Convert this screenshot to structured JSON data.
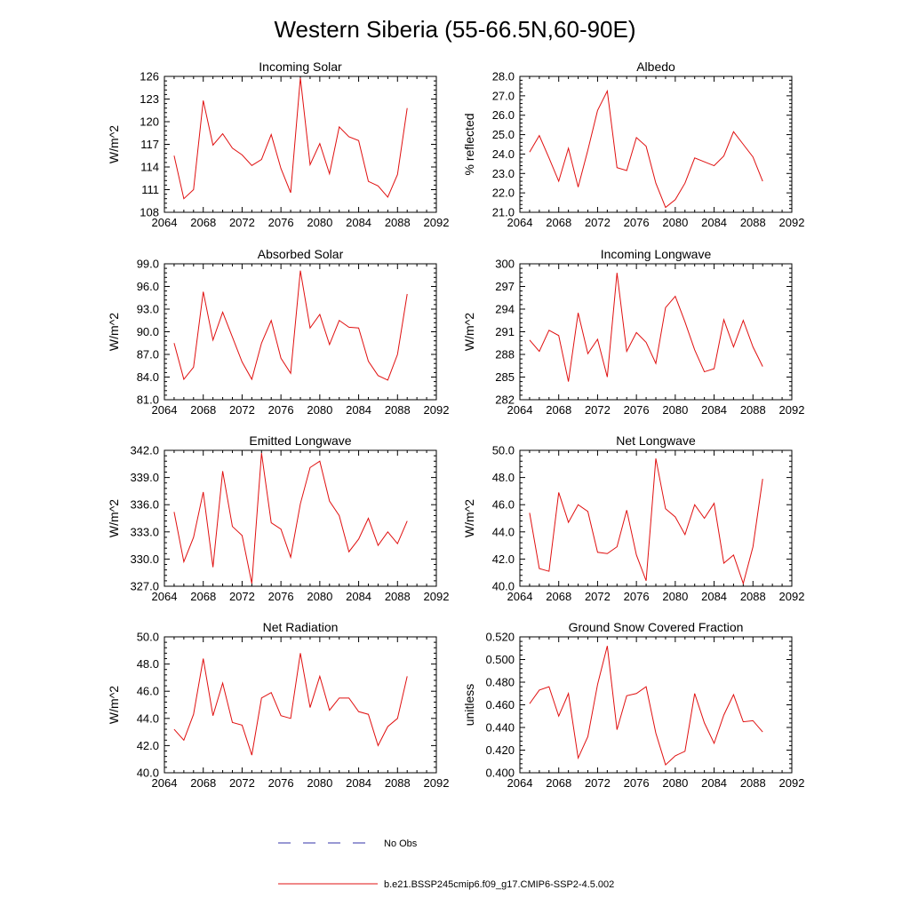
{
  "title": "Western Siberia (55-66.5N,60-90E)",
  "legend": [
    {
      "label": "No Obs",
      "color": "#3333aa",
      "style": "dashed"
    },
    {
      "label": "b.e21.BSSP245cmip6.f09_g17.CMIP6-SSP2-4.5.002",
      "color": "#e01010",
      "style": "solid"
    }
  ],
  "chart_data": [
    {
      "type": "line",
      "title": "Incoming Solar",
      "ylabel": "W/m^2",
      "xlim": [
        2064,
        2092
      ],
      "xticks": [
        2064,
        2068,
        2072,
        2076,
        2080,
        2084,
        2088,
        2092
      ],
      "ylim": [
        108,
        126
      ],
      "yticks": [
        108,
        111,
        114,
        117,
        120,
        123,
        126
      ],
      "ytick_labels": [
        "108",
        "111",
        "114",
        "117",
        "120",
        "123",
        "126"
      ],
      "x": [
        2065,
        2066,
        2067,
        2068,
        2069,
        2070,
        2071,
        2072,
        2073,
        2074,
        2075,
        2076,
        2077,
        2078,
        2079,
        2080,
        2081,
        2082,
        2083,
        2084,
        2085,
        2086,
        2087,
        2088,
        2089
      ],
      "series": [
        {
          "name": "b.e21.BSSP245cmip6.f09_g17.CMIP6-SSP2-4.5.002",
          "color": "#e01010",
          "values": [
            115.5,
            109.8,
            111.0,
            122.8,
            116.9,
            118.4,
            116.5,
            115.6,
            114.2,
            115.0,
            118.3,
            113.8,
            110.6,
            125.8,
            114.3,
            117.1,
            113.1,
            119.3,
            118.0,
            117.5,
            112.1,
            111.5,
            110.0,
            113.0,
            121.8
          ]
        }
      ]
    },
    {
      "type": "line",
      "title": "Albedo",
      "ylabel": "% reflected",
      "xlim": [
        2064,
        2092
      ],
      "xticks": [
        2064,
        2068,
        2072,
        2076,
        2080,
        2084,
        2088,
        2092
      ],
      "ylim": [
        21.0,
        28.0
      ],
      "yticks": [
        21,
        22,
        23,
        24,
        25,
        26,
        27,
        28
      ],
      "ytick_labels": [
        "21.0",
        "22.0",
        "23.0",
        "24.0",
        "25.0",
        "26.0",
        "27.0",
        "28.0"
      ],
      "x": [
        2065,
        2066,
        2067,
        2068,
        2069,
        2070,
        2071,
        2072,
        2073,
        2074,
        2075,
        2076,
        2077,
        2078,
        2079,
        2080,
        2081,
        2082,
        2083,
        2084,
        2085,
        2086,
        2087,
        2088,
        2089
      ],
      "series": [
        {
          "name": "b.e21.BSSP245cmip6.f09_g17.CMIP6-SSP2-4.5.002",
          "color": "#e01010",
          "values": [
            24.1,
            24.95,
            23.8,
            22.6,
            24.3,
            22.3,
            24.2,
            26.25,
            27.25,
            23.3,
            23.15,
            24.85,
            24.4,
            22.5,
            21.25,
            21.65,
            22.5,
            23.8,
            23.6,
            23.4,
            23.9,
            25.15,
            24.5,
            23.85,
            22.6
          ]
        }
      ]
    },
    {
      "type": "line",
      "title": "Absorbed Solar",
      "ylabel": "W/m^2",
      "xlim": [
        2064,
        2092
      ],
      "xticks": [
        2064,
        2068,
        2072,
        2076,
        2080,
        2084,
        2088,
        2092
      ],
      "ylim": [
        81,
        99
      ],
      "yticks": [
        81,
        84,
        87,
        90,
        93,
        96,
        99
      ],
      "ytick_labels": [
        "81.0",
        "84.0",
        "87.0",
        "90.0",
        "93.0",
        "96.0",
        "99.0"
      ],
      "x": [
        2065,
        2066,
        2067,
        2068,
        2069,
        2070,
        2071,
        2072,
        2073,
        2074,
        2075,
        2076,
        2077,
        2078,
        2079,
        2080,
        2081,
        2082,
        2083,
        2084,
        2085,
        2086,
        2087,
        2088,
        2089
      ],
      "series": [
        {
          "name": "b.e21.BSSP245cmip6.f09_g17.CMIP6-SSP2-4.5.002",
          "color": "#e01010",
          "values": [
            88.5,
            83.7,
            85.3,
            95.3,
            88.9,
            92.6,
            89.3,
            86.0,
            83.7,
            88.5,
            91.5,
            86.5,
            84.5,
            98.1,
            90.5,
            92.3,
            88.3,
            91.5,
            90.6,
            90.5,
            86.1,
            84.2,
            83.6,
            87.0,
            95.0
          ]
        }
      ]
    },
    {
      "type": "line",
      "title": "Incoming Longwave",
      "ylabel": "W/m^2",
      "xlim": [
        2064,
        2092
      ],
      "xticks": [
        2064,
        2068,
        2072,
        2076,
        2080,
        2084,
        2088,
        2092
      ],
      "ylim": [
        282,
        300
      ],
      "yticks": [
        282,
        285,
        288,
        291,
        294,
        297,
        300
      ],
      "ytick_labels": [
        "282",
        "285",
        "288",
        "291",
        "294",
        "297",
        "300"
      ],
      "x": [
        2065,
        2066,
        2067,
        2068,
        2069,
        2070,
        2071,
        2072,
        2073,
        2074,
        2075,
        2076,
        2077,
        2078,
        2079,
        2080,
        2081,
        2082,
        2083,
        2084,
        2085,
        2086,
        2087,
        2088,
        2089
      ],
      "series": [
        {
          "name": "b.e21.BSSP245cmip6.f09_g17.CMIP6-SSP2-4.5.002",
          "color": "#e01010",
          "values": [
            289.9,
            288.4,
            291.2,
            290.5,
            284.4,
            293.5,
            288.1,
            290.0,
            285.0,
            298.8,
            288.4,
            290.9,
            289.6,
            286.8,
            294.2,
            295.7,
            292.3,
            288.6,
            285.7,
            286.1,
            292.6,
            289.0,
            292.5,
            289.0,
            286.4
          ]
        }
      ]
    },
    {
      "type": "line",
      "title": "Emitted Longwave",
      "ylabel": "W/m^2",
      "xlim": [
        2064,
        2092
      ],
      "xticks": [
        2064,
        2068,
        2072,
        2076,
        2080,
        2084,
        2088,
        2092
      ],
      "ylim": [
        327,
        342
      ],
      "yticks": [
        327,
        330,
        333,
        336,
        339,
        342
      ],
      "ytick_labels": [
        "327.0",
        "330.0",
        "333.0",
        "336.0",
        "339.0",
        "342.0"
      ],
      "x": [
        2065,
        2066,
        2067,
        2068,
        2069,
        2070,
        2071,
        2072,
        2073,
        2074,
        2075,
        2076,
        2077,
        2078,
        2079,
        2080,
        2081,
        2082,
        2083,
        2084,
        2085,
        2086,
        2087,
        2088,
        2089
      ],
      "series": [
        {
          "name": "b.e21.BSSP245cmip6.f09_g17.CMIP6-SSP2-4.5.002",
          "color": "#e01010",
          "values": [
            335.2,
            329.7,
            332.4,
            337.4,
            329.1,
            339.7,
            333.6,
            332.6,
            327.3,
            341.7,
            334.0,
            333.3,
            330.2,
            336.1,
            340.1,
            340.8,
            336.4,
            334.8,
            330.8,
            332.2,
            334.5,
            331.5,
            333.0,
            331.7,
            334.2
          ]
        }
      ]
    },
    {
      "type": "line",
      "title": "Net Longwave",
      "ylabel": "W/m^2",
      "xlim": [
        2064,
        2092
      ],
      "xticks": [
        2064,
        2068,
        2072,
        2076,
        2080,
        2084,
        2088,
        2092
      ],
      "ylim": [
        40,
        50
      ],
      "yticks": [
        40,
        42,
        44,
        46,
        48,
        50
      ],
      "ytick_labels": [
        "40.0",
        "42.0",
        "44.0",
        "46.0",
        "48.0",
        "50.0"
      ],
      "x": [
        2065,
        2066,
        2067,
        2068,
        2069,
        2070,
        2071,
        2072,
        2073,
        2074,
        2075,
        2076,
        2077,
        2078,
        2079,
        2080,
        2081,
        2082,
        2083,
        2084,
        2085,
        2086,
        2087,
        2088,
        2089
      ],
      "series": [
        {
          "name": "b.e21.BSSP245cmip6.f09_g17.CMIP6-SSP2-4.5.002",
          "color": "#e01010",
          "values": [
            45.4,
            41.3,
            41.1,
            46.9,
            44.7,
            46.0,
            45.5,
            42.5,
            42.4,
            42.9,
            45.6,
            42.3,
            40.4,
            49.4,
            45.7,
            45.1,
            43.8,
            46.0,
            45.0,
            46.1,
            41.7,
            42.3,
            40.2,
            42.9,
            47.9
          ]
        }
      ]
    },
    {
      "type": "line",
      "title": "Net Radiation",
      "ylabel": "W/m^2",
      "xlim": [
        2064,
        2092
      ],
      "xticks": [
        2064,
        2068,
        2072,
        2076,
        2080,
        2084,
        2088,
        2092
      ],
      "ylim": [
        40,
        50
      ],
      "yticks": [
        40,
        42,
        44,
        46,
        48,
        50
      ],
      "ytick_labels": [
        "40.0",
        "42.0",
        "44.0",
        "46.0",
        "48.0",
        "50.0"
      ],
      "x": [
        2065,
        2066,
        2067,
        2068,
        2069,
        2070,
        2071,
        2072,
        2073,
        2074,
        2075,
        2076,
        2077,
        2078,
        2079,
        2080,
        2081,
        2082,
        2083,
        2084,
        2085,
        2086,
        2087,
        2088,
        2089
      ],
      "series": [
        {
          "name": "b.e21.BSSP245cmip6.f09_g17.CMIP6-SSP2-4.5.002",
          "color": "#e01010",
          "values": [
            43.2,
            42.4,
            44.3,
            48.4,
            44.2,
            46.6,
            43.7,
            43.5,
            41.3,
            45.5,
            45.9,
            44.2,
            44.0,
            48.8,
            44.8,
            47.1,
            44.6,
            45.5,
            45.5,
            44.5,
            44.3,
            42.0,
            43.4,
            44.0,
            47.1
          ]
        }
      ]
    },
    {
      "type": "line",
      "title": "Ground Snow Covered Fraction",
      "ylabel": "unitless",
      "xlim": [
        2064,
        2092
      ],
      "xticks": [
        2064,
        2068,
        2072,
        2076,
        2080,
        2084,
        2088,
        2092
      ],
      "ylim": [
        0.4,
        0.52
      ],
      "yticks": [
        0.4,
        0.42,
        0.44,
        0.46,
        0.48,
        0.5,
        0.52
      ],
      "ytick_labels": [
        "0.400",
        "0.420",
        "0.440",
        "0.460",
        "0.480",
        "0.500",
        "0.520"
      ],
      "x": [
        2065,
        2066,
        2067,
        2068,
        2069,
        2070,
        2071,
        2072,
        2073,
        2074,
        2075,
        2076,
        2077,
        2078,
        2079,
        2080,
        2081,
        2082,
        2083,
        2084,
        2085,
        2086,
        2087,
        2088,
        2089
      ],
      "series": [
        {
          "name": "b.e21.BSSP245cmip6.f09_g17.CMIP6-SSP2-4.5.002",
          "color": "#e01010",
          "values": [
            0.461,
            0.473,
            0.476,
            0.45,
            0.47,
            0.413,
            0.432,
            0.478,
            0.512,
            0.438,
            0.468,
            0.47,
            0.476,
            0.435,
            0.407,
            0.415,
            0.419,
            0.47,
            0.444,
            0.426,
            0.451,
            0.469,
            0.445,
            0.446,
            0.436
          ]
        }
      ]
    }
  ]
}
